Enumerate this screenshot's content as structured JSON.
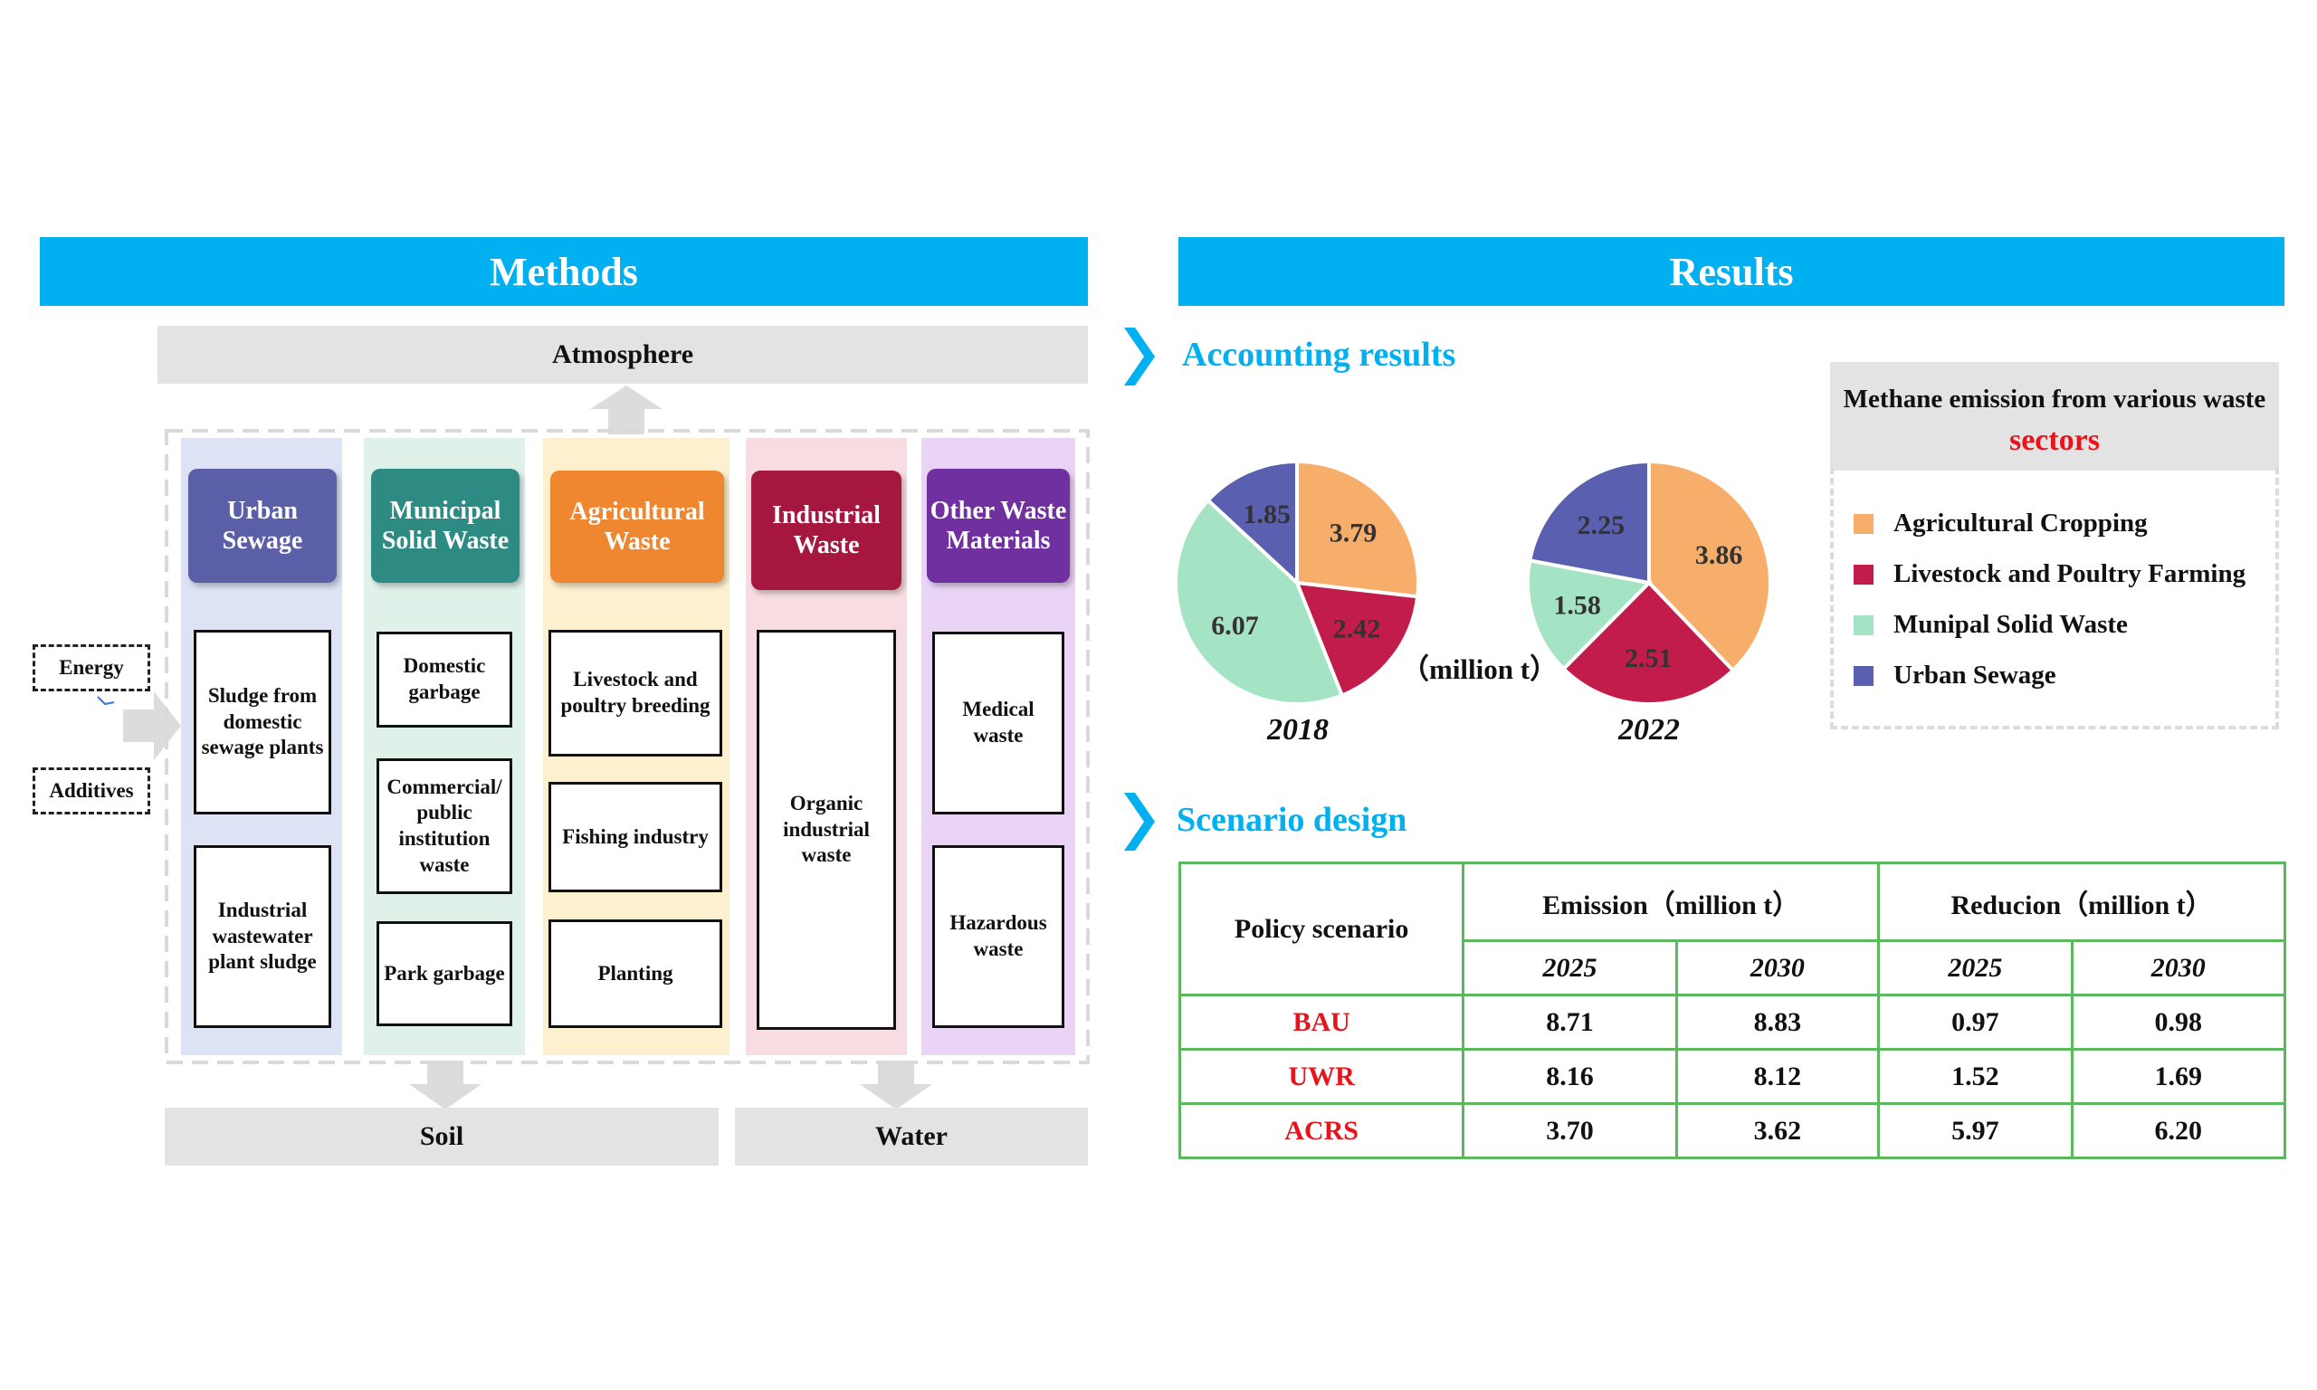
{
  "methods": {
    "title": "Methods",
    "atmosphere": "Atmosphere",
    "soil": "Soil",
    "water": "Water",
    "inputs": [
      "Energy",
      "Additives"
    ],
    "categories": [
      {
        "name": "Urban Sewage",
        "color": "#5b5fa8",
        "bg": "#dde3f4",
        "items": [
          "Sludge from domestic sewage plants",
          "Industrial wastewater plant sludge"
        ]
      },
      {
        "name": "Municipal Solid Waste",
        "color": "#2e8b83",
        "bg": "#e0f1ea",
        "items": [
          "Domestic garbage",
          "Commercial/ public institution waste",
          "Park garbage"
        ]
      },
      {
        "name": "Agricultural Waste",
        "color": "#ef8630",
        "bg": "#fdf0cf",
        "items": [
          "Livestock and poultry breeding",
          "Fishing industry",
          "Planting"
        ]
      },
      {
        "name": "Industrial Waste",
        "color": "#a6173f",
        "bg": "#f7dde1",
        "items": [
          "Organic industrial waste"
        ]
      },
      {
        "name": "Other Waste Materials",
        "color": "#7030a0",
        "bg": "#e9d4f5",
        "items": [
          "Medical waste",
          "Hazardous waste"
        ]
      }
    ]
  },
  "results": {
    "title": "Results",
    "accounting_title": "Accounting results",
    "unit": "（million t）",
    "scenario_title": "Scenario design",
    "legend": {
      "title_prefix": "Methane emission from various waste",
      "title_highlight": "sectors",
      "items": [
        {
          "label": "Agricultural Cropping",
          "color": "#f7ae6a"
        },
        {
          "label": "Livestock and Poultry Farming",
          "color": "#c21d4a"
        },
        {
          "label": "Munipal Solid Waste",
          "color": "#a4e4c4"
        },
        {
          "label": "Urban Sewage",
          "color": "#5b5fb0"
        }
      ]
    },
    "table": {
      "header_policy": "Policy scenario",
      "header_emission": "Emission（million t）",
      "header_reduction": "Reducion（million t）",
      "years": [
        "2025",
        "2030",
        "2025",
        "2030"
      ],
      "rows": [
        {
          "scenario": "BAU",
          "values": [
            "8.71",
            "8.83",
            "0.97",
            "0.98"
          ]
        },
        {
          "scenario": "UWR",
          "values": [
            "8.16",
            "8.12",
            "1.52",
            "1.69"
          ]
        },
        {
          "scenario": "ACRS",
          "values": [
            "3.70",
            "3.62",
            "5.97",
            "6.20"
          ]
        }
      ],
      "scenario_color": "#e8141c"
    }
  },
  "chart_data": [
    {
      "type": "pie",
      "title": "2018",
      "categories": [
        "Agricultural Cropping",
        "Livestock and Poultry Farming",
        "Munipal Solid Waste",
        "Urban Sewage"
      ],
      "values": [
        3.79,
        2.42,
        6.07,
        1.85
      ]
    },
    {
      "type": "pie",
      "title": "2022",
      "categories": [
        "Agricultural Cropping",
        "Livestock and Poultry Farming",
        "Munipal Solid Waste",
        "Urban Sewage"
      ],
      "values": [
        3.86,
        2.51,
        1.58,
        2.25
      ]
    }
  ]
}
